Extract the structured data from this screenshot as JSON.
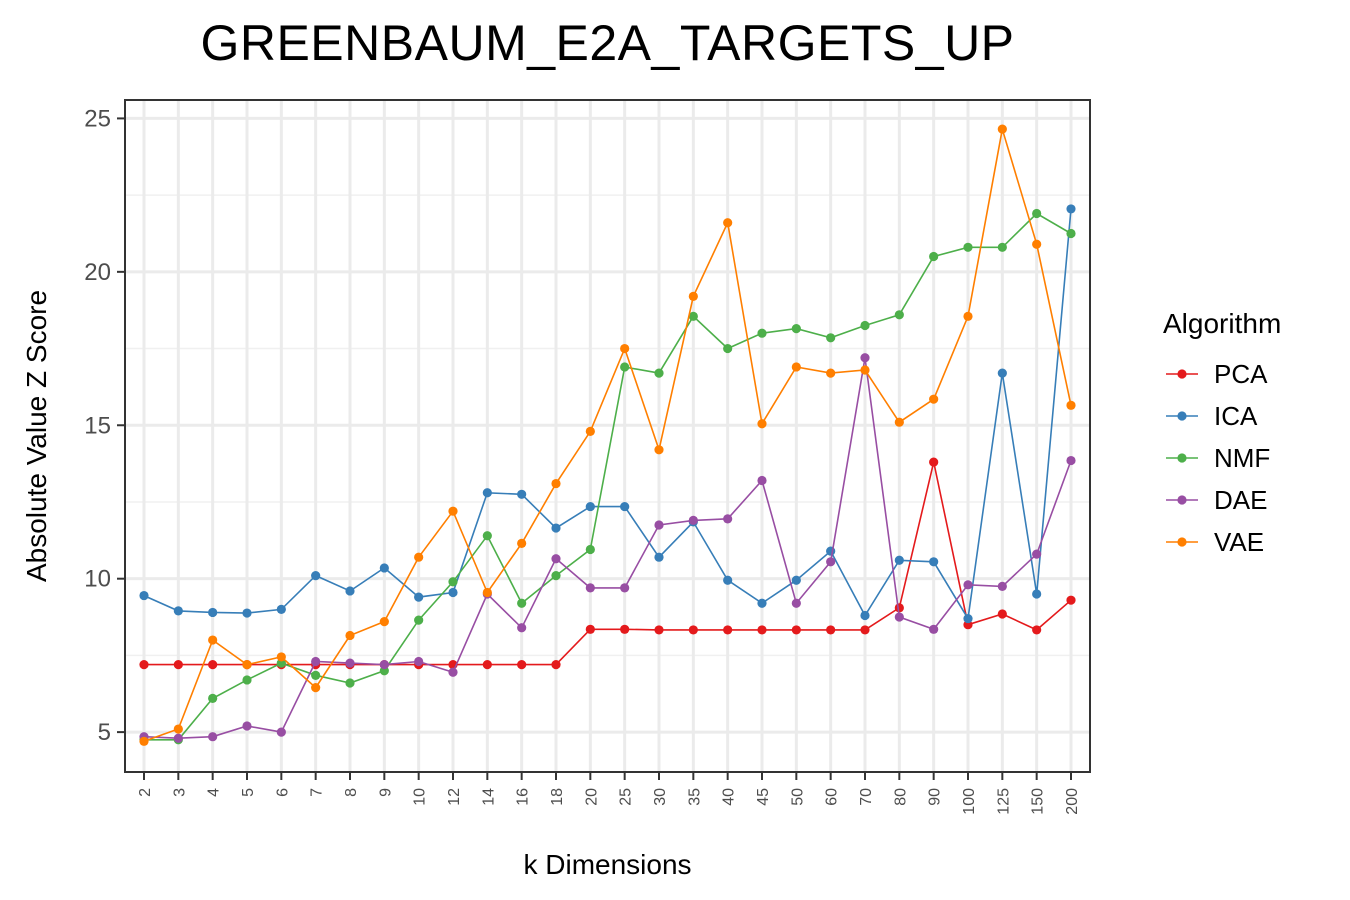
{
  "chart_data": {
    "type": "line",
    "title": "GREENBAUM_E2A_TARGETS_UP",
    "xlabel": "k Dimensions",
    "ylabel": "Absolute Value Z Score",
    "categories": [
      "2",
      "3",
      "4",
      "5",
      "6",
      "7",
      "8",
      "9",
      "10",
      "12",
      "14",
      "16",
      "18",
      "20",
      "25",
      "30",
      "35",
      "40",
      "45",
      "50",
      "60",
      "70",
      "80",
      "90",
      "100",
      "125",
      "150",
      "200"
    ],
    "yticks": [
      5,
      10,
      15,
      20,
      25
    ],
    "ylim": [
      3.7,
      25.6
    ],
    "grid": true,
    "legend": {
      "title": "Algorithm",
      "position": "right"
    },
    "series": [
      {
        "name": "PCA",
        "color": "#e41a1c",
        "values": [
          7.2,
          7.2,
          7.2,
          7.2,
          7.2,
          7.2,
          7.2,
          7.2,
          7.2,
          7.2,
          7.2,
          7.2,
          7.2,
          8.35,
          8.35,
          8.33,
          8.33,
          8.33,
          8.33,
          8.33,
          8.33,
          8.33,
          9.05,
          13.8,
          8.5,
          8.85,
          8.33,
          9.3
        ]
      },
      {
        "name": "ICA",
        "color": "#377eb8",
        "values": [
          9.45,
          8.95,
          8.9,
          8.88,
          9.0,
          10.1,
          9.6,
          10.35,
          9.4,
          9.55,
          12.8,
          12.75,
          11.65,
          12.35,
          12.35,
          10.7,
          11.85,
          9.95,
          9.2,
          9.95,
          10.9,
          8.8,
          10.6,
          10.55,
          8.7,
          16.7,
          9.5,
          22.05
        ]
      },
      {
        "name": "NMF",
        "color": "#4daf4a",
        "values": [
          4.75,
          4.75,
          6.1,
          6.7,
          7.25,
          6.85,
          6.6,
          7.0,
          8.65,
          9.9,
          11.4,
          9.2,
          10.1,
          10.95,
          16.9,
          16.7,
          18.55,
          17.5,
          18.0,
          18.15,
          17.85,
          18.25,
          18.6,
          20.5,
          20.8,
          20.8,
          21.9,
          21.25
        ]
      },
      {
        "name": "DAE",
        "color": "#984ea3",
        "values": [
          4.85,
          4.8,
          4.85,
          5.2,
          5.0,
          7.3,
          7.25,
          7.2,
          7.3,
          6.95,
          9.5,
          8.4,
          10.65,
          9.7,
          9.7,
          11.75,
          11.9,
          11.95,
          13.2,
          9.2,
          10.55,
          17.2,
          8.75,
          8.35,
          9.8,
          9.75,
          10.8,
          13.85
        ]
      },
      {
        "name": "VAE",
        "color": "#ff7f00",
        "values": [
          4.7,
          5.1,
          8.0,
          7.2,
          7.45,
          6.45,
          8.15,
          8.6,
          10.7,
          12.2,
          9.55,
          11.15,
          13.1,
          14.8,
          17.5,
          14.2,
          19.2,
          21.6,
          15.05,
          16.9,
          16.7,
          16.8,
          15.1,
          15.85,
          18.55,
          24.65,
          20.9,
          15.65
        ]
      }
    ]
  }
}
